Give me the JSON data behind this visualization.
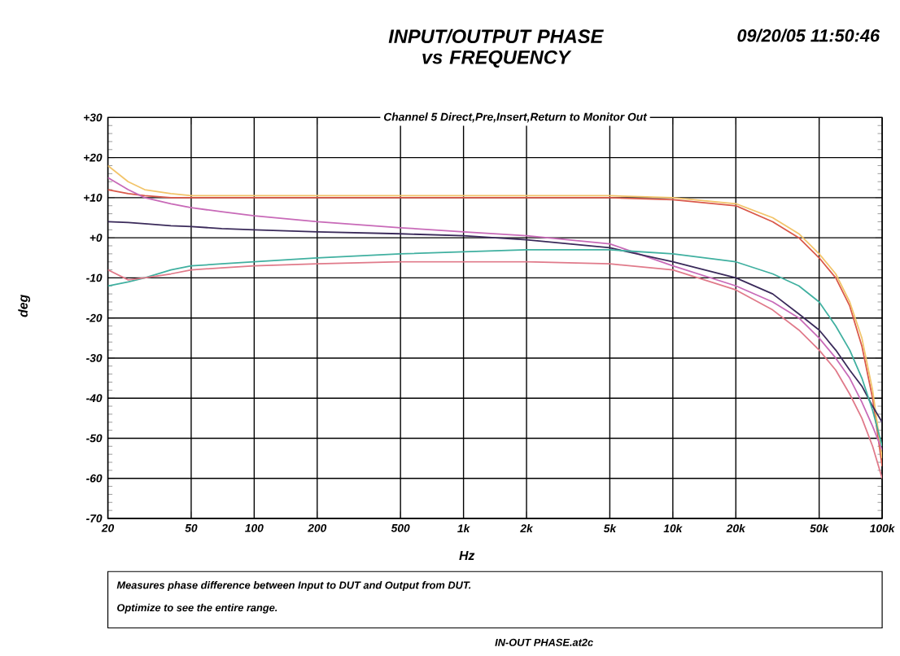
{
  "chart_data": {
    "type": "line",
    "title": "INPUT/OUTPUT PHASE vs FREQUENCY",
    "subtitle": "Channel 5 Direct,Pre,Insert,Return to Monitor Out",
    "xlabel": "Hz",
    "ylabel": "deg",
    "annotations": [
      "09/20/05 11:50:46",
      "Measures phase difference between Input to DUT and Output from DUT.",
      "Optimize to see the entire range.",
      "IN-OUT PHASE.at2c"
    ],
    "log": "x",
    "grid": true,
    "line_style": "solid",
    "marker": "none",
    "xlim": [
      20,
      100000
    ],
    "ylim": [
      -70,
      30
    ],
    "xticks": [
      20,
      50,
      100,
      200,
      500,
      {
        "value": 1000,
        "label": "1k"
      },
      {
        "value": 2000,
        "label": "2k"
      },
      {
        "value": 5000,
        "label": "5k"
      },
      {
        "value": 10000,
        "label": "10k"
      },
      {
        "value": 20000,
        "label": "20k"
      },
      {
        "value": 50000,
        "label": "50k"
      },
      {
        "value": 100000,
        "label": "100k"
      }
    ],
    "yticks": [
      {
        "value": 30,
        "label": "+30"
      },
      {
        "value": 20,
        "label": "+20"
      },
      {
        "value": 10,
        "label": "+10"
      },
      {
        "value": 0,
        "label": "+0"
      },
      -10,
      -20,
      -30,
      -40,
      -50,
      -60,
      -70
    ],
    "x": [
      20,
      25,
      30,
      40,
      50,
      70,
      100,
      200,
      500,
      1000,
      2000,
      5000,
      10000,
      20000,
      30000,
      40000,
      50000,
      60000,
      70000,
      80000,
      90000,
      100000
    ],
    "series": [
      {
        "color": "#d9584a",
        "values": [
          12,
          11,
          10.5,
          10,
          10,
          10,
          10,
          10,
          10,
          10,
          10,
          10,
          9.5,
          8,
          4,
          0,
          -5,
          -10,
          -17,
          -27,
          -40,
          -57
        ]
      },
      {
        "color": "#f2c46a",
        "values": [
          18,
          14,
          12,
          11,
          10.5,
          10.5,
          10.5,
          10.5,
          10.5,
          10.5,
          10.5,
          10.5,
          10,
          8.5,
          5,
          1,
          -4,
          -9,
          -16,
          -25,
          -38,
          -55
        ]
      },
      {
        "color": "#c86ab8",
        "values": [
          15,
          12,
          10,
          8.5,
          7.5,
          6.5,
          5.5,
          4,
          2.5,
          1.5,
          0.5,
          -1.5,
          -7,
          -12,
          -16,
          -20,
          -25,
          -30,
          -35,
          -41,
          -47,
          -53
        ]
      },
      {
        "color": "#3a2a5a",
        "values": [
          4,
          3.8,
          3.5,
          3,
          2.8,
          2.3,
          2,
          1.5,
          1,
          0.5,
          -0.5,
          -2.5,
          -6,
          -10,
          -14,
          -19,
          -23,
          -28,
          -33,
          -37,
          -42,
          -46
        ]
      },
      {
        "color": "#40b0a0",
        "values": [
          -12,
          -11,
          -10,
          -8,
          -7,
          -6.5,
          -6,
          -5,
          -4,
          -3.5,
          -3,
          -3,
          -4,
          -6,
          -9,
          -12,
          -16,
          -22,
          -28,
          -35,
          -43,
          -52
        ]
      },
      {
        "color": "#e07a8a",
        "values": [
          -8,
          -10.5,
          -10,
          -9,
          -8,
          -7.5,
          -7,
          -6.5,
          -6,
          -6,
          -6,
          -6.5,
          -8,
          -13,
          -18,
          -23,
          -28,
          -33,
          -39,
          -45,
          -52,
          -60
        ]
      }
    ]
  }
}
